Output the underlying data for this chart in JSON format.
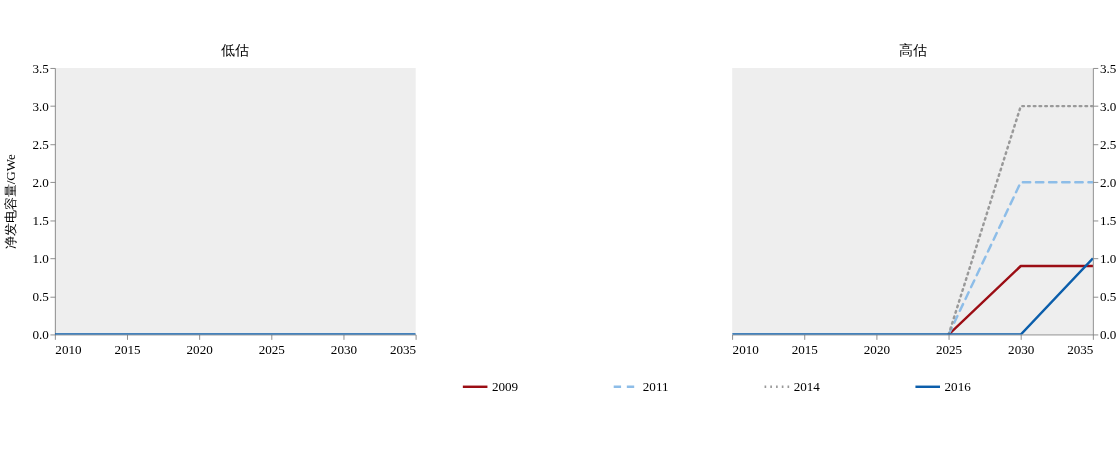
{
  "chart_data": [
    {
      "type": "line",
      "title": "低估",
      "ylabel": "净发电容量/GWe",
      "x": [
        2010,
        2015,
        2020,
        2025,
        2030,
        2035
      ],
      "xlim": [
        2010,
        2035
      ],
      "xticks": [
        2010,
        2015,
        2020,
        2025,
        2030,
        2035
      ],
      "ylim": [
        0,
        3.5
      ],
      "yticks": [
        {
          "value": 0,
          "label": "0.0"
        },
        0.5,
        {
          "value": 1,
          "label": "1.0"
        },
        1.5,
        {
          "value": 2,
          "label": "2.0"
        },
        2.5,
        {
          "value": 3,
          "label": "3.0"
        },
        3.5
      ],
      "grid": false,
      "marker": "none",
      "series": [
        {
          "color": "#9b0d14",
          "line_style": "solid",
          "values": [
            null,
            null,
            null,
            null,
            null,
            null
          ]
        },
        {
          "color": "#8dbde8",
          "line_style": "dashed",
          "values": [
            null,
            null,
            null,
            null,
            null,
            null
          ]
        },
        {
          "color": "#999999",
          "line_style": "dotted",
          "values": [
            null,
            null,
            null,
            null,
            null,
            null
          ]
        },
        {
          "color": "#0b5eab",
          "line_style": "solid",
          "values": [
            0,
            0,
            0,
            0,
            0,
            0
          ]
        }
      ]
    },
    {
      "type": "line",
      "title": "高估",
      "x": [
        2010,
        2015,
        2020,
        2025,
        2030,
        2035
      ],
      "xlim": [
        2010,
        2035
      ],
      "xticks": [
        2010,
        2015,
        2020,
        2025,
        2030,
        2035
      ],
      "ylim": [
        0,
        3.5
      ],
      "yticks": [
        {
          "value": 0,
          "label": "0.0"
        },
        0.5,
        {
          "value": 1,
          "label": "1.0"
        },
        1.5,
        {
          "value": 2,
          "label": "2.0"
        },
        2.5,
        {
          "value": 3,
          "label": "3.0"
        },
        3.5
      ],
      "grid": false,
      "legend": "bottom",
      "marker": "none",
      "series": [
        {
          "name": "2009",
          "color": "#9b0d14",
          "line_style": "solid",
          "values": [
            null,
            null,
            null,
            0,
            0.9,
            0.9
          ]
        },
        {
          "name": "2011",
          "color": "#8dbde8",
          "line_style": "dashed",
          "values": [
            null,
            null,
            null,
            0,
            2.0,
            2.0
          ]
        },
        {
          "name": "2014",
          "color": "#999999",
          "line_style": "dotted",
          "values": [
            null,
            null,
            null,
            0,
            3.0,
            3.0
          ]
        },
        {
          "name": "2016",
          "color": "#0b5eab",
          "line_style": "solid",
          "values": [
            0,
            0,
            0,
            0,
            0,
            1.0
          ]
        }
      ]
    }
  ]
}
